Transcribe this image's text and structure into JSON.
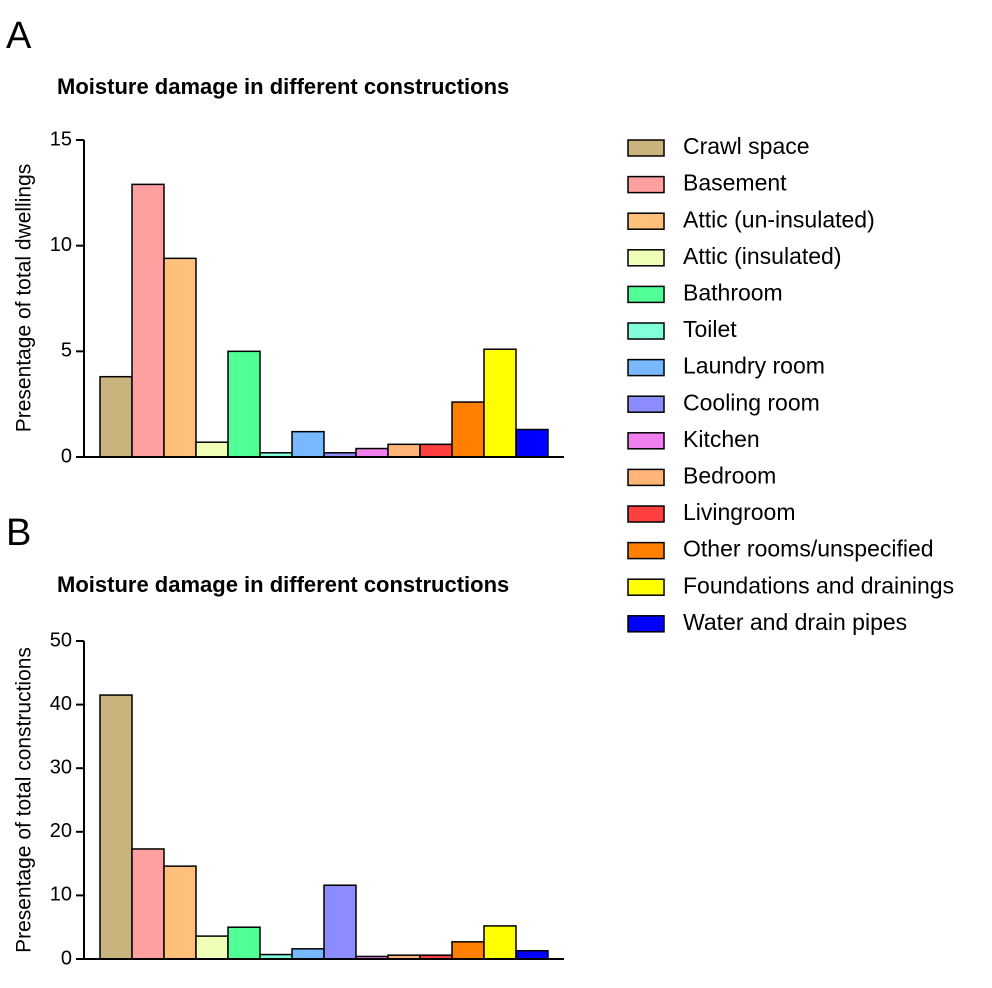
{
  "chart_data": [
    {
      "type": "bar",
      "panel_label": "A",
      "title": "Moisture damage in different constructions",
      "y_label": "Presentage of total dwellings",
      "values": [
        3.8,
        12.9,
        9.4,
        0.7,
        5.0,
        0.2,
        1.2,
        0.2,
        0.4,
        0.6,
        0.6,
        2.6,
        5.1,
        1.3
      ],
      "ylim": [
        0,
        15
      ],
      "yticks": [
        0,
        5,
        10,
        15
      ]
    },
    {
      "type": "bar",
      "panel_label": "B",
      "title": "Moisture damage in different constructions",
      "y_label": "Presentage of total constructions",
      "values": [
        41.5,
        17.3,
        14.6,
        3.6,
        5.0,
        0.7,
        1.6,
        11.6,
        0.4,
        0.6,
        0.6,
        2.7,
        5.2,
        1.3
      ],
      "ylim": [
        0,
        50
      ],
      "yticks": [
        0,
        10,
        20,
        30,
        40,
        50
      ]
    }
  ],
  "legend": [
    {
      "name": "Crawl space",
      "color": "#c8b47c"
    },
    {
      "name": "Basement",
      "color": "#ffa0a0"
    },
    {
      "name": "Attic (un-insulated)",
      "color": "#ffc07c"
    },
    {
      "name": "Attic (insulated)",
      "color": "#f0ffb8"
    },
    {
      "name": "Bathroom",
      "color": "#50ff96"
    },
    {
      "name": "Toilet",
      "color": "#80ffd8"
    },
    {
      "name": "Laundry room",
      "color": "#78b8ff"
    },
    {
      "name": "Cooling room",
      "color": "#8c8cff"
    },
    {
      "name": "Kitchen",
      "color": "#f080f0"
    },
    {
      "name": "Bedroom",
      "color": "#ffb478"
    },
    {
      "name": "Livingroom",
      "color": "#ff4040"
    },
    {
      "name": "Other rooms/unspecified",
      "color": "#ff8000"
    },
    {
      "name": "Foundations and drainings",
      "color": "#ffff00"
    },
    {
      "name": "Water and drain pipes",
      "color": "#0000ff"
    }
  ]
}
